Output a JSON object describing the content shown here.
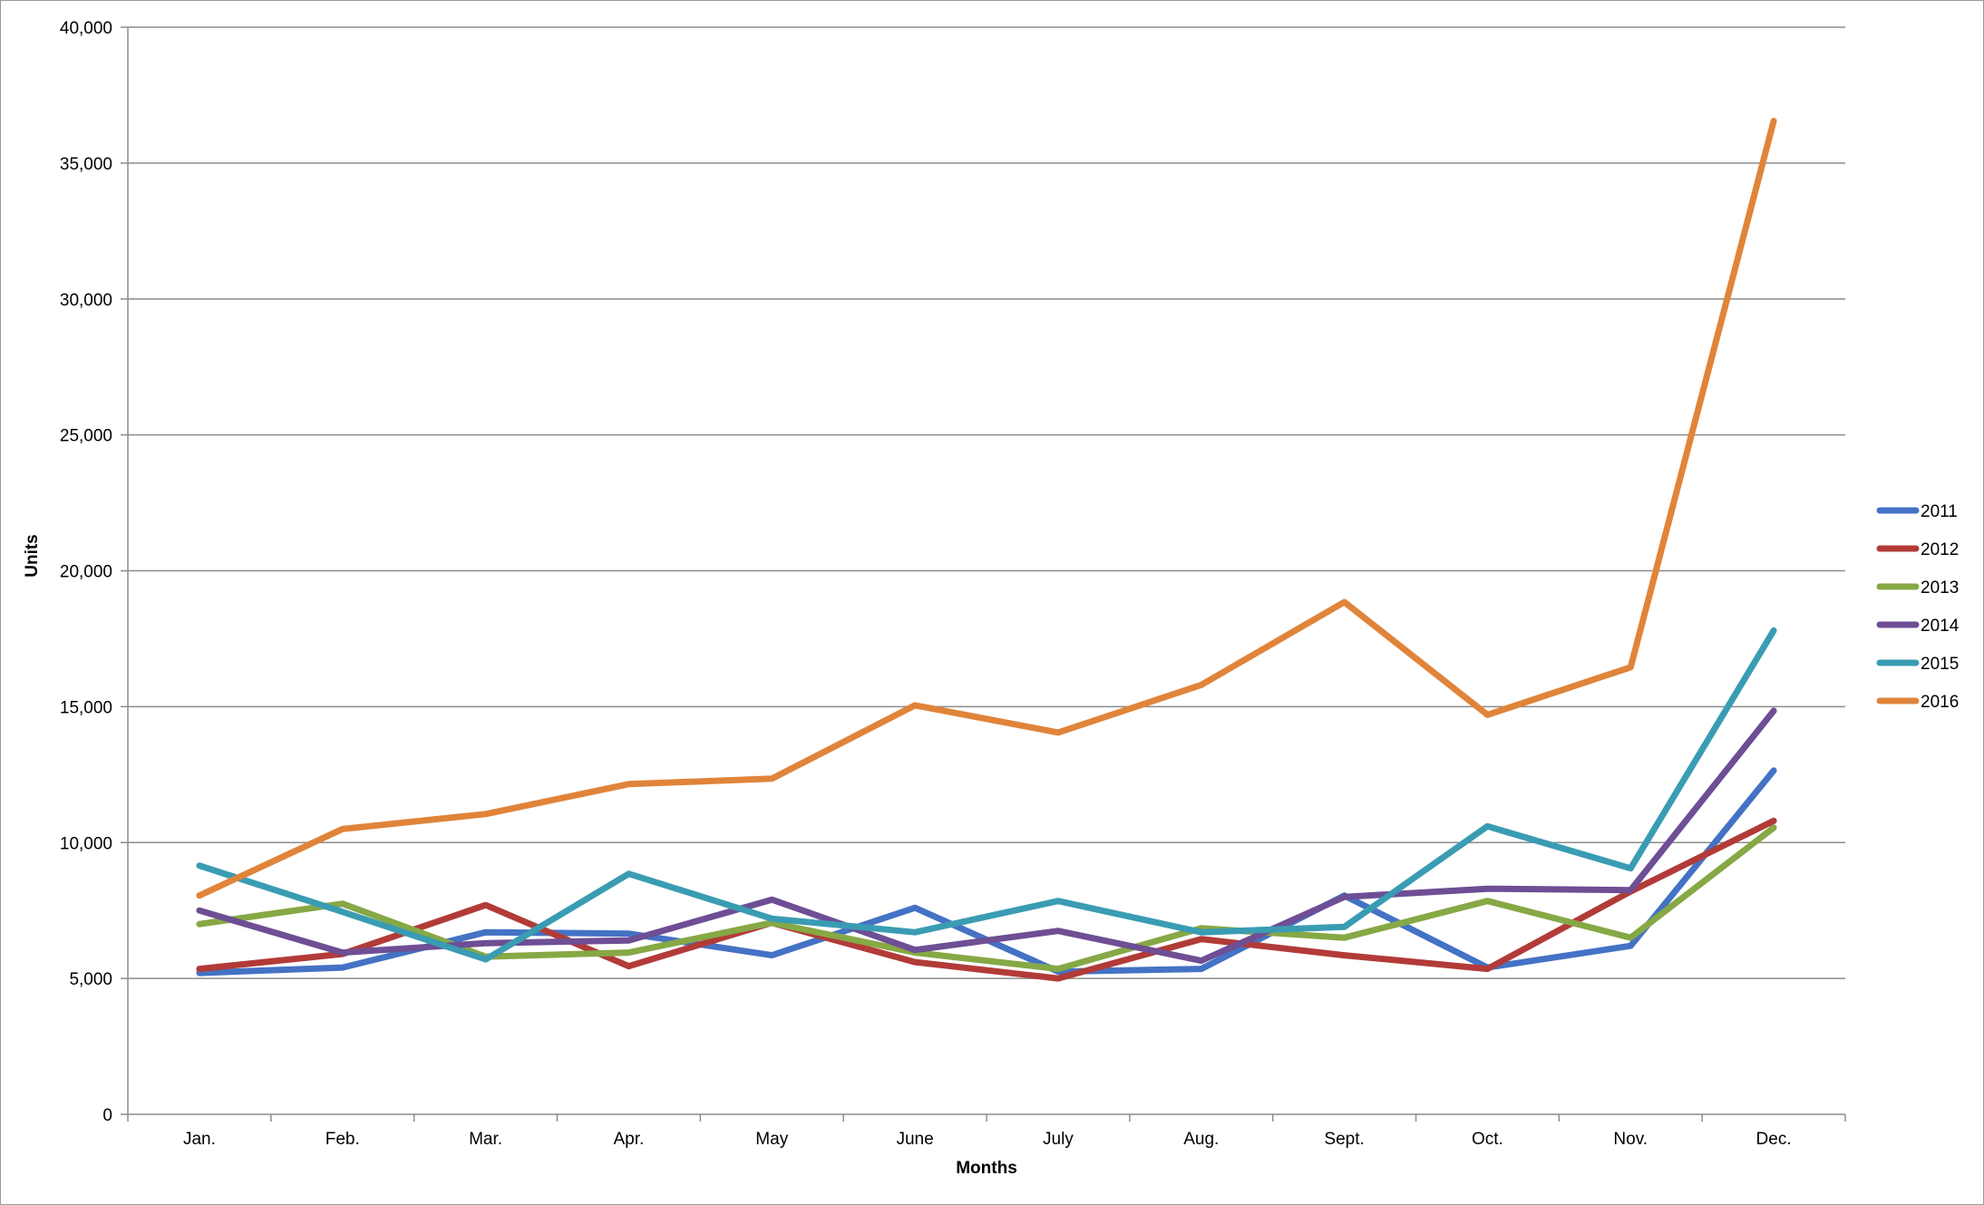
{
  "chart_data": {
    "type": "line",
    "title": "",
    "xlabel": "Months",
    "ylabel": "Units",
    "ylim": [
      0,
      40000
    ],
    "yticks": [
      0,
      5000,
      10000,
      15000,
      20000,
      25000,
      30000,
      35000,
      40000
    ],
    "ytick_labels": [
      "0",
      "5,000",
      "10,000",
      "15,000",
      "20,000",
      "25,000",
      "30,000",
      "35,000",
      "40,000"
    ],
    "grid": "horizontal",
    "legend_position": "right",
    "categories": [
      "Jan.",
      "Feb.",
      "Mar.",
      "Apr.",
      "May",
      "June",
      "July",
      "Aug.",
      "Sept.",
      "Oct.",
      "Nov.",
      "Dec."
    ],
    "series": [
      {
        "name": "2011",
        "color": "#4472C4",
        "values": [
          5200,
          5400,
          6700,
          6650,
          5850,
          7600,
          5250,
          5350,
          8050,
          5400,
          6200,
          12650
        ]
      },
      {
        "name": "2012",
        "color": "#B23B38",
        "values": [
          5350,
          5900,
          7700,
          5450,
          7050,
          5600,
          5000,
          6450,
          5850,
          5350,
          8200,
          10800
        ]
      },
      {
        "name": "2013",
        "color": "#86A845",
        "values": [
          7000,
          7750,
          5800,
          5950,
          7050,
          5950,
          5350,
          6850,
          6500,
          7850,
          6500,
          10550
        ]
      },
      {
        "name": "2014",
        "color": "#6E4E94",
        "values": [
          7500,
          5950,
          6300,
          6400,
          7900,
          6050,
          6750,
          5650,
          8000,
          8300,
          8250,
          14850
        ]
      },
      {
        "name": "2015",
        "color": "#3A9CB3",
        "values": [
          9150,
          7450,
          5700,
          8850,
          7200,
          6700,
          7850,
          6700,
          6900,
          10600,
          9050,
          17800
        ]
      },
      {
        "name": "2016",
        "color": "#E0843A",
        "values": [
          8050,
          10500,
          11050,
          12150,
          12350,
          15050,
          14050,
          15800,
          18850,
          14700,
          16450,
          36550
        ]
      }
    ]
  }
}
